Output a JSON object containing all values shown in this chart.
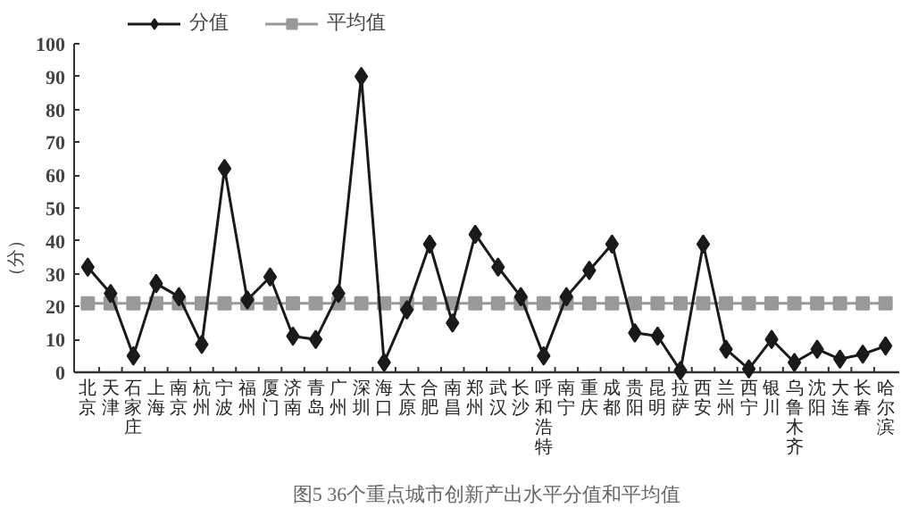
{
  "chart_data": {
    "type": "line",
    "categories": [
      "北京",
      "天津",
      "石家庄",
      "上海",
      "南京",
      "杭州",
      "宁波",
      "福州",
      "厦门",
      "济南",
      "青岛",
      "广州",
      "深圳",
      "海口",
      "太原",
      "合肥",
      "南昌",
      "郑州",
      "武汉",
      "长沙",
      "呼和浩特",
      "南宁",
      "重庆",
      "成都",
      "贵阳",
      "昆明",
      "拉萨",
      "西安",
      "兰州",
      "西宁",
      "银川",
      "乌鲁木齐",
      "沈阳",
      "大连",
      "长春",
      "哈尔滨"
    ],
    "series": [
      {
        "name": "分值",
        "color": "#1a1a1a",
        "marker": "diamond",
        "values": [
          32,
          24,
          5,
          27,
          23,
          8.5,
          62,
          22,
          29,
          11,
          10,
          24,
          90,
          3,
          19,
          39,
          15,
          42,
          32,
          23,
          5,
          23,
          31,
          39,
          12,
          11,
          0.5,
          39,
          7,
          1,
          10,
          3,
          7,
          4,
          5.5,
          8
        ]
      },
      {
        "name": "平均值",
        "color": "#999999",
        "marker": "square",
        "values": [
          21,
          21,
          21,
          21,
          21,
          21,
          21,
          21,
          21,
          21,
          21,
          21,
          21,
          21,
          21,
          21,
          21,
          21,
          21,
          21,
          21,
          21,
          21,
          21,
          21,
          21,
          21,
          21,
          21,
          21,
          21,
          21,
          21,
          21,
          21,
          21
        ]
      }
    ],
    "ylabel": "（分）",
    "ylim": [
      0,
      100
    ],
    "yticks": [
      0,
      10,
      20,
      30,
      40,
      50,
      60,
      70,
      80,
      90,
      100
    ],
    "grid": false,
    "legend": "top",
    "line_style": "solid",
    "annotations": [
      "图5 36个重点城市创新产出水平分值和平均值"
    ]
  }
}
